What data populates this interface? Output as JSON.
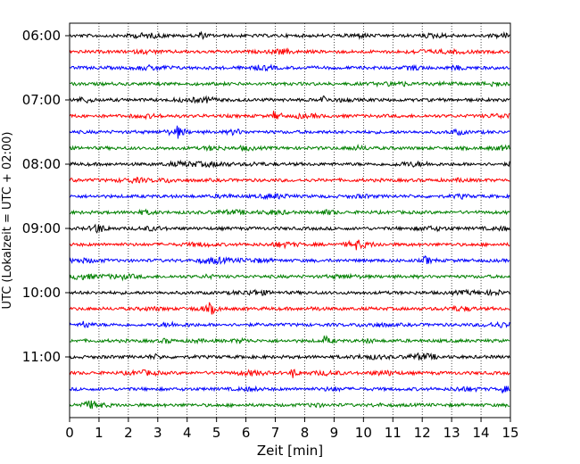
{
  "chart_data": {
    "type": "line",
    "title": "",
    "xlabel": "Zeit  [min]",
    "ylabel": "UTC (Lokalzeit = UTC + 02:00)",
    "xlim": [
      0,
      15
    ],
    "x_ticks": [
      0,
      1,
      2,
      3,
      4,
      5,
      6,
      7,
      8,
      9,
      10,
      11,
      12,
      13,
      14,
      15
    ],
    "x_tick_labels": [
      "0",
      "1",
      "2",
      "3",
      "4",
      "5",
      "6",
      "7",
      "8",
      "9",
      "10",
      "11",
      "12",
      "13",
      "14",
      "15"
    ],
    "y_axis_inverted": true,
    "y_ticks": [
      "06:00",
      "07:00",
      "08:00",
      "09:00",
      "10:00",
      "11:00"
    ],
    "trace_interval_minutes": 15,
    "grid": "vertical dotted lines at each minute",
    "color_cycle": [
      "#000000",
      "#ff0000",
      "#0000ff",
      "#008000"
    ],
    "trace_start_times": [
      "06:00",
      "06:15",
      "06:30",
      "06:45",
      "07:00",
      "07:15",
      "07:30",
      "07:45",
      "08:00",
      "08:15",
      "08:30",
      "08:45",
      "09:00",
      "09:15",
      "09:30",
      "09:45",
      "10:00",
      "10:15",
      "10:30",
      "10:45",
      "11:00",
      "11:15",
      "11:30",
      "11:45"
    ],
    "notable_events": [
      {
        "trace": "06:00",
        "minute": 4.4
      },
      {
        "trace": "07:00",
        "minute": 8.6
      },
      {
        "trace": "07:15",
        "minute": 7.0
      },
      {
        "trace": "07:30",
        "minute": 3.7
      },
      {
        "trace": "08:00",
        "minute": 15.0
      },
      {
        "trace": "09:00",
        "minute": 0.9
      },
      {
        "trace": "09:15",
        "minute": 9.8
      },
      {
        "trace": "09:30",
        "minute": 12.1
      },
      {
        "trace": "10:15",
        "minute": 4.8
      },
      {
        "trace": "10:30",
        "minute": 0.5
      },
      {
        "trace": "10:45",
        "minute": 8.7
      },
      {
        "trace": "11:15",
        "minute": 7.6
      },
      {
        "trace": "11:30",
        "minute": 14.7
      }
    ]
  }
}
